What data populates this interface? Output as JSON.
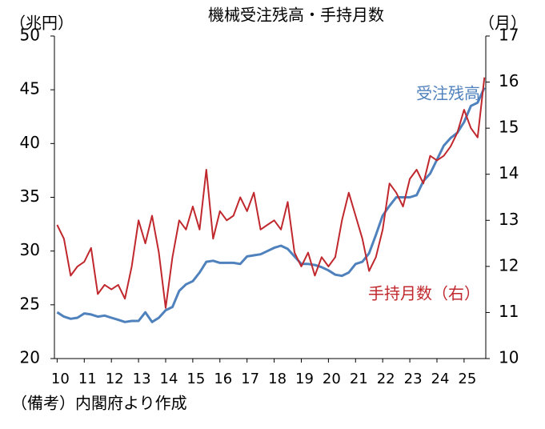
{
  "chart_data": {
    "type": "line",
    "title": "機械受注残高・手持月数",
    "y_label": "（兆円）",
    "y2_label": "（月）",
    "note": "（備考）内閣府より作成",
    "x": [
      10,
      10.25,
      10.5,
      10.75,
      11,
      11.25,
      11.5,
      11.75,
      12,
      12.25,
      12.5,
      12.75,
      13,
      13.25,
      13.5,
      13.75,
      14,
      14.25,
      14.5,
      14.75,
      15,
      15.25,
      15.5,
      15.75,
      16,
      16.25,
      16.5,
      16.75,
      17,
      17.25,
      17.5,
      17.75,
      18,
      18.25,
      18.5,
      18.75,
      19,
      19.25,
      19.5,
      19.75,
      20,
      20.25,
      20.5,
      20.75,
      21,
      21.25,
      21.5,
      21.75,
      22,
      22.25,
      22.5,
      22.75,
      23,
      23.25,
      23.5,
      23.75,
      24,
      24.25,
      24.5,
      24.75,
      25,
      25.25,
      25.5,
      25.75
    ],
    "xlim": [
      9.9,
      25.8
    ],
    "xticks": [
      10,
      11,
      12,
      13,
      14,
      15,
      16,
      17,
      18,
      19,
      20,
      21,
      22,
      23,
      24,
      25
    ],
    "ylim": [
      20,
      50
    ],
    "yticks": [
      20,
      25,
      30,
      35,
      40,
      45,
      50
    ],
    "y2lim": [
      10,
      17
    ],
    "y2ticks": [
      10,
      11,
      12,
      13,
      14,
      15,
      16,
      17
    ],
    "series": [
      {
        "name": "受注残高",
        "color": "#4f81bd",
        "values": [
          24.3,
          23.9,
          23.7,
          23.8,
          24.2,
          24.1,
          23.9,
          24.0,
          23.8,
          23.6,
          23.4,
          23.5,
          23.5,
          24.3,
          23.4,
          23.8,
          24.5,
          24.8,
          26.3,
          26.9,
          27.2,
          28.0,
          29.0,
          29.1,
          28.9,
          28.9,
          28.9,
          28.8,
          29.5,
          29.6,
          29.7,
          30.0,
          30.3,
          30.5,
          30.2,
          29.5,
          28.8,
          28.8,
          28.7,
          28.5,
          28.2,
          27.8,
          27.7,
          28.0,
          28.8,
          29.0,
          29.8,
          31.5,
          33.3,
          34.2,
          35.0,
          35.0,
          35.0,
          35.2,
          36.5,
          37.2,
          38.5,
          39.8,
          40.5,
          41.0,
          42.0,
          43.5,
          43.8,
          45.2
        ]
      },
      {
        "name": "手持月数（右）",
        "color": "#c0282d",
        "axis": "y2",
        "values": [
          12.9,
          12.6,
          11.8,
          12.0,
          12.1,
          12.4,
          11.4,
          11.6,
          11.5,
          11.6,
          11.3,
          12.0,
          13.0,
          12.5,
          13.1,
          12.3,
          11.1,
          12.2,
          13.0,
          12.8,
          13.3,
          12.8,
          14.1,
          12.6,
          13.2,
          13.0,
          13.1,
          13.5,
          13.2,
          13.6,
          12.8,
          12.9,
          13.0,
          12.8,
          13.4,
          12.3,
          12.0,
          12.3,
          11.8,
          12.2,
          12.0,
          12.2,
          13.0,
          13.6,
          13.1,
          12.6,
          11.9,
          12.2,
          12.8,
          13.8,
          13.6,
          13.3,
          13.9,
          14.1,
          13.8,
          14.4,
          14.3,
          14.4,
          14.6,
          14.9,
          15.4,
          15.0,
          14.8,
          16.1
        ]
      }
    ]
  }
}
